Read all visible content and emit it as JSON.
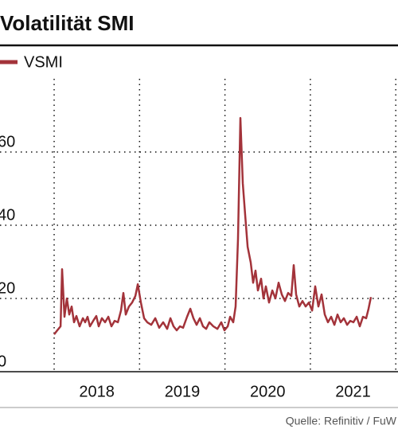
{
  "chart_data": {
    "type": "line",
    "title": "Volatilität SMI",
    "source": "Quelle: Refinitiv / FuW",
    "xlim": [
      2017.366,
      2022.026
    ],
    "xgrid": [
      2018,
      2019,
      2020,
      2021,
      2022
    ],
    "xticks": [
      {
        "value": 2018.5,
        "label": "2018"
      },
      {
        "value": 2019.5,
        "label": "2019"
      },
      {
        "value": 2020.5,
        "label": "2020"
      },
      {
        "value": 2021.5,
        "label": "2021"
      }
    ],
    "ylim": [
      0,
      80
    ],
    "yticks": [
      0,
      20,
      40,
      60
    ],
    "grid": true,
    "x": [
      2018.0,
      2018.037,
      2018.075,
      2018.093,
      2018.121,
      2018.149,
      2018.177,
      2018.205,
      2018.233,
      2018.261,
      2018.298,
      2018.336,
      2018.363,
      2018.391,
      2018.419,
      2018.457,
      2018.494,
      2018.522,
      2018.559,
      2018.596,
      2018.634,
      2018.671,
      2018.708,
      2018.746,
      2018.783,
      2018.811,
      2018.839,
      2018.876,
      2018.913,
      2018.951,
      2018.979,
      2019.016,
      2019.053,
      2019.09,
      2019.137,
      2019.184,
      2019.23,
      2019.277,
      2019.323,
      2019.361,
      2019.398,
      2019.435,
      2019.473,
      2019.51,
      2019.556,
      2019.594,
      2019.631,
      2019.668,
      2019.706,
      2019.743,
      2019.78,
      2019.817,
      2019.864,
      2019.911,
      2019.957,
      2019.994,
      2020.032,
      2020.06,
      2020.097,
      2020.125,
      2020.153,
      2020.181,
      2020.209,
      2020.237,
      2020.265,
      2020.302,
      2020.33,
      2020.358,
      2020.386,
      2020.423,
      2020.451,
      2020.479,
      2020.516,
      2020.554,
      2020.591,
      2020.628,
      2020.665,
      2020.703,
      2020.74,
      2020.777,
      2020.805,
      2020.833,
      2020.87,
      2020.908,
      2020.945,
      2020.982,
      2021.02,
      2021.057,
      2021.094,
      2021.131,
      2021.169,
      2021.206,
      2021.243,
      2021.281,
      2021.318,
      2021.355,
      2021.392,
      2021.43,
      2021.467,
      2021.504,
      2021.542,
      2021.579,
      2021.616,
      2021.653,
      2021.681,
      2021.709
    ],
    "series": [
      {
        "name": "VSMI",
        "color": "#a3333a",
        "values": [
          10.2,
          11.3,
          12.4,
          28,
          15,
          20,
          15.6,
          17.8,
          13.5,
          15.2,
          12.4,
          14.6,
          13.5,
          15,
          12.4,
          13.9,
          15.2,
          12.4,
          14.6,
          13.5,
          15,
          12.4,
          13.9,
          13.5,
          16.7,
          21.5,
          15.6,
          17.8,
          18.9,
          20.7,
          23.9,
          18.9,
          14.6,
          13.5,
          12.8,
          14.6,
          12,
          13.5,
          11.7,
          14.6,
          12.4,
          11.3,
          12.4,
          12,
          15,
          17.2,
          14.6,
          12.8,
          14.6,
          12.4,
          11.7,
          13.5,
          12.4,
          11.7,
          13.5,
          11.3,
          12.4,
          15,
          13.5,
          17.8,
          36.3,
          69.3,
          51.5,
          42.8,
          34.1,
          29.8,
          24.3,
          27.6,
          22.2,
          25.4,
          20,
          23.3,
          18.9,
          22.2,
          20,
          24.3,
          21.1,
          19.3,
          21.5,
          20.7,
          29.1,
          21.1,
          17.8,
          19.3,
          17.8,
          18.9,
          16.7,
          23.3,
          17.8,
          21.1,
          15.6,
          13.5,
          15,
          12.8,
          15.6,
          13.5,
          14.6,
          12.8,
          13.9,
          13.5,
          15,
          12.4,
          15,
          14.6,
          17.2,
          20.4
        ]
      }
    ]
  }
}
